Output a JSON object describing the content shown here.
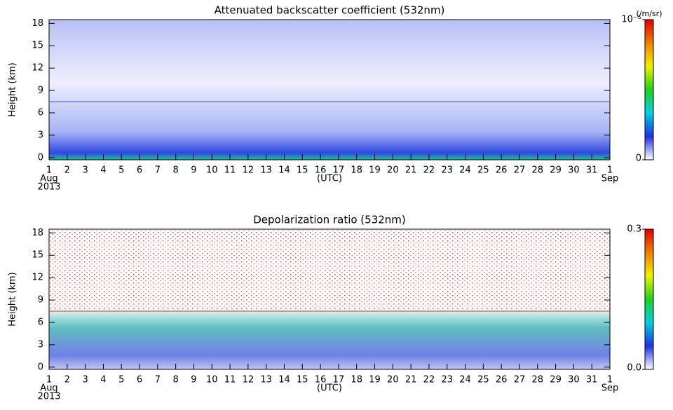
{
  "chart_data": [
    {
      "type": "heatmap",
      "title": "Attenuated backscatter coefficient (532nm)",
      "ylabel": "Height (km)",
      "xlabel": "(UTC)",
      "x_start_labels": [
        "Aug",
        "2013"
      ],
      "x_end_label": "Sep",
      "xlim": [
        1,
        32
      ],
      "xticks": [
        1,
        2,
        3,
        4,
        5,
        6,
        7,
        8,
        9,
        10,
        11,
        12,
        13,
        14,
        15,
        16,
        17,
        18,
        19,
        20,
        21,
        22,
        23,
        24,
        25,
        26,
        27,
        28,
        29,
        30,
        31,
        {
          "value": 32,
          "label": "1"
        }
      ],
      "ylim": [
        -0.3,
        18.5
      ],
      "yticks": [
        0,
        3,
        6,
        9,
        12,
        15,
        18
      ],
      "hline": 7.5,
      "hline_color": "#3a4fe0",
      "colorbar_unit": "(/m/sr)",
      "clim": [
        0,
        1e-05
      ],
      "cticks": [
        0,
        {
          "value": 1e-05,
          "label": "10⁻⁵"
        }
      ],
      "colormap": [
        "#ffffff",
        "#2030e0",
        "#00d0e0",
        "#20d020",
        "#f0f000",
        "#f08000",
        "#e00000"
      ]
    },
    {
      "type": "heatmap",
      "title": "Depolarization ratio (532nm)",
      "ylabel": "Height (km)",
      "xlabel": "(UTC)",
      "x_start_labels": [
        "Aug",
        "2013"
      ],
      "x_end_label": "Sep",
      "xlim": [
        1,
        32
      ],
      "xticks": [
        1,
        2,
        3,
        4,
        5,
        6,
        7,
        8,
        9,
        10,
        11,
        12,
        13,
        14,
        15,
        16,
        17,
        18,
        19,
        20,
        21,
        22,
        23,
        24,
        25,
        26,
        27,
        28,
        29,
        30,
        31,
        {
          "value": 32,
          "label": "1"
        }
      ],
      "ylim": [
        -0.3,
        18.5
      ],
      "yticks": [
        0,
        3,
        6,
        9,
        12,
        15,
        18
      ],
      "hline": 7.5,
      "hline_color": "#e03020",
      "clim": [
        0,
        0.3
      ],
      "cticks": [
        {
          "value": 0,
          "label": "0.0"
        },
        0.3
      ],
      "colormap": [
        "#ffffff",
        "#2030e0",
        "#00d0e0",
        "#20d020",
        "#f0f000",
        "#f08000",
        "#e00000"
      ]
    }
  ]
}
